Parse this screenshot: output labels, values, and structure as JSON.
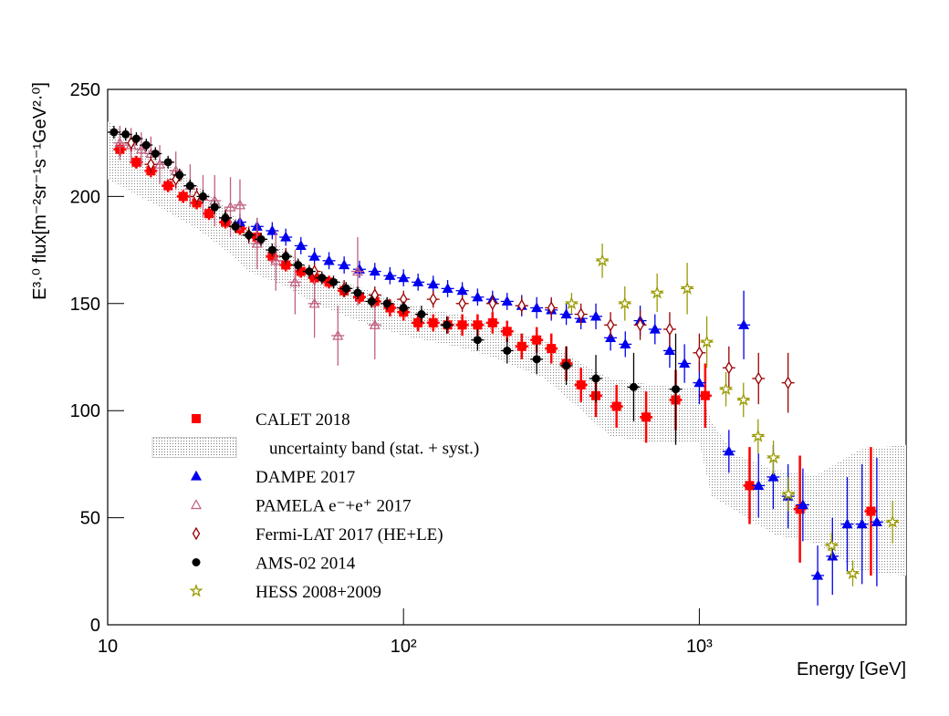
{
  "chart_data": {
    "type": "scatter",
    "x_label": "Energy [GeV]",
    "y_label": "E³·⁰ flux[m⁻²sr⁻¹s⁻¹GeV²·⁰]",
    "log_x": true,
    "xlim": [
      10,
      5000
    ],
    "ylim": [
      0,
      250
    ],
    "xticks": [
      10,
      {
        "value": 100,
        "label": "10²"
      },
      {
        "value": 1000,
        "label": "10³"
      }
    ],
    "yticks": [
      0,
      50,
      100,
      150,
      200,
      250
    ],
    "legend": "lower-left",
    "band": {
      "name": "uncertainty band (stat. + syst.)",
      "color": "#888888",
      "x": [
        10,
        15,
        20,
        25,
        30,
        40,
        50,
        70,
        100,
        150,
        200,
        300,
        400,
        500,
        700,
        1000,
        1100,
        1300,
        1800,
        2500,
        3500,
        5000
      ],
      "upper": [
        235,
        218,
        205,
        195,
        185,
        175,
        165,
        158,
        150,
        145,
        140,
        133,
        122,
        115,
        112,
        110,
        95,
        80,
        72,
        70,
        82,
        84
      ],
      "lower": [
        208,
        195,
        185,
        175,
        165,
        158,
        150,
        142,
        135,
        130,
        125,
        115,
        100,
        88,
        85,
        85,
        60,
        54,
        42,
        38,
        25,
        23
      ]
    },
    "series": [
      {
        "name": "CALET 2018",
        "color": "#ff0000",
        "marker": "square",
        "x": [
          11,
          12.5,
          14,
          16,
          18,
          20,
          22,
          25,
          28,
          32,
          36,
          40,
          45,
          50,
          56,
          63,
          71,
          80,
          90,
          100,
          112,
          126,
          141,
          158,
          178,
          200,
          224,
          251,
          282,
          316,
          355,
          398,
          447,
          525,
          661,
          832,
          1047,
          1479,
          2188,
          3802
        ],
        "values": [
          222,
          216,
          212,
          205,
          200,
          197,
          192,
          188,
          185,
          181,
          172,
          168,
          165,
          162,
          160,
          156,
          153,
          151,
          148,
          146,
          141,
          141,
          140,
          140,
          140,
          141,
          137,
          130,
          133,
          129,
          122,
          112,
          107,
          102,
          97,
          105,
          107,
          65,
          54,
          53
        ],
        "errors": [
          3,
          3,
          3,
          3,
          3,
          3,
          3,
          3,
          3,
          3,
          3,
          3,
          3,
          3,
          3,
          3,
          3,
          3,
          4,
          4,
          4,
          4,
          4,
          5,
          5,
          5,
          5,
          6,
          6,
          7,
          8,
          8,
          10,
          10,
          12,
          14,
          15,
          18,
          25,
          30
        ]
      },
      {
        "name": "DAMPE 2017",
        "color": "#0000ee",
        "marker": "triangle",
        "x": [
          28,
          32,
          36,
          40,
          45,
          50,
          56,
          63,
          71,
          80,
          90,
          100,
          112,
          126,
          141,
          158,
          178,
          200,
          224,
          251,
          282,
          316,
          355,
          398,
          447,
          501,
          562,
          631,
          708,
          794,
          891,
          1000,
          1259,
          1413,
          1585,
          1778,
          1995,
          2239,
          2512,
          2818,
          3162,
          3548,
          3981
        ],
        "values": [
          188,
          186,
          184,
          181,
          177,
          172,
          170,
          168,
          166,
          165,
          163,
          162,
          160,
          159,
          157,
          156,
          153,
          152,
          151,
          149,
          148,
          147,
          145,
          143,
          144,
          134,
          131,
          142,
          138,
          128,
          122,
          113,
          81,
          140,
          65,
          69,
          60,
          56,
          23,
          32,
          47,
          47,
          48
        ],
        "errors": [
          4,
          4,
          4,
          4,
          4,
          4,
          4,
          4,
          4,
          4,
          4,
          4,
          4,
          4,
          4,
          4,
          4,
          4,
          4,
          5,
          5,
          5,
          5,
          5,
          6,
          6,
          6,
          7,
          7,
          8,
          9,
          10,
          10,
          16,
          15,
          15,
          15,
          17,
          14,
          18,
          22,
          28,
          30
        ]
      },
      {
        "name": "PAMELA e⁻+e⁺ 2017",
        "color": "#c06080",
        "marker": "open-triangle",
        "x": [
          11,
          12,
          13,
          14,
          15,
          17,
          19,
          21,
          23,
          26,
          28,
          32,
          37,
          43,
          50,
          60,
          70,
          80
        ],
        "values": [
          225,
          224,
          222,
          220,
          215,
          212,
          205,
          200,
          198,
          195,
          196,
          178,
          170,
          160,
          150,
          135,
          165,
          140
        ],
        "errors": [
          8,
          8,
          8,
          8,
          9,
          9,
          10,
          10,
          12,
          14,
          12,
          12,
          14,
          15,
          16,
          14,
          16,
          16
        ]
      },
      {
        "name": "Fermi-LAT 2017 (HE+LE)",
        "color": "#990000",
        "marker": "diamond",
        "x": [
          12,
          14,
          17,
          20,
          25,
          30,
          40,
          50,
          63,
          80,
          100,
          126,
          158,
          200,
          251,
          316,
          398,
          501,
          631,
          794,
          1000,
          1259,
          1585,
          1995
        ],
        "values": [
          225,
          215,
          208,
          200,
          190,
          182,
          172,
          165,
          157,
          154,
          152,
          152,
          150,
          150,
          149,
          148,
          145,
          140,
          140,
          138,
          127,
          120,
          115,
          113
        ],
        "errors": [
          4,
          4,
          4,
          4,
          4,
          4,
          4,
          4,
          4,
          4,
          4,
          4,
          4,
          4,
          4,
          5,
          5,
          6,
          7,
          8,
          9,
          10,
          12,
          14
        ]
      },
      {
        "name": "AMS-02 2014",
        "color": "#000000",
        "marker": "circle",
        "x": [
          10.5,
          11.5,
          12.5,
          13.5,
          14.5,
          16,
          17.5,
          19,
          21,
          23,
          25,
          27,
          30,
          33,
          36,
          40,
          44,
          48,
          53,
          58,
          64,
          70,
          78,
          88,
          100,
          115,
          140,
          178,
          224,
          282,
          355,
          447,
          600,
          832
        ],
        "values": [
          230,
          229,
          227,
          224,
          220,
          216,
          210,
          205,
          200,
          195,
          190,
          186,
          182,
          180,
          175,
          172,
          168,
          165,
          162,
          160,
          157,
          155,
          151,
          150,
          148,
          145,
          140,
          133,
          128,
          124,
          121,
          115,
          111,
          110
        ],
        "errors": [
          3,
          3,
          3,
          3,
          3,
          3,
          3,
          3,
          3,
          3,
          3,
          3,
          3,
          3,
          3,
          3,
          3,
          3,
          3,
          3,
          3,
          3,
          3,
          3,
          3,
          4,
          4,
          5,
          6,
          7,
          9,
          11,
          16,
          26
        ]
      },
      {
        "name": "HESS 2008+2009",
        "color": "#999900",
        "marker": "star",
        "x": [
          370,
          470,
          560,
          720,
          910,
          1060,
          1230,
          1410,
          1580,
          1780,
          2000,
          2800,
          3300,
          4500
        ],
        "values": [
          150,
          170,
          150,
          155,
          157,
          132,
          110,
          105,
          88,
          78,
          61,
          37,
          24,
          48
        ],
        "errors": [
          5,
          8,
          8,
          9,
          12,
          12,
          8,
          8,
          8,
          8,
          8,
          6,
          6,
          10
        ]
      }
    ]
  }
}
